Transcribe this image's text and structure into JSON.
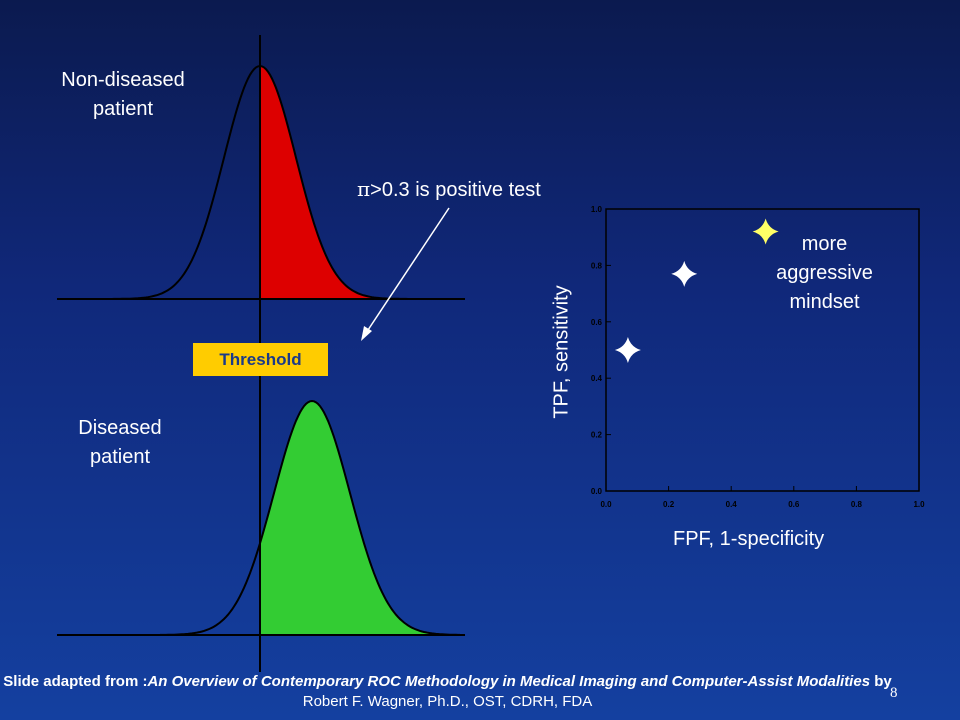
{
  "labels": {
    "non_diseased": [
      "Non-diseased",
      "patient"
    ],
    "diseased": [
      "Diseased",
      "patient"
    ],
    "threshold": "Threshold",
    "positive_test_symbol": "π",
    "positive_test_text": ">0.3 is positive test",
    "aggressive": [
      "more",
      "aggressive",
      "mindset"
    ]
  },
  "chart_data": {
    "type": "scatter",
    "xlabel": "FPF, 1-specificity",
    "ylabel": "TPF, sensitivity",
    "xlim": [
      0,
      1
    ],
    "ylim": [
      0,
      1
    ],
    "x_ticks": [
      "0.0",
      "0.2",
      "0.4",
      "0.6",
      "0.8",
      "1.0"
    ],
    "y_ticks": [
      "0.0",
      "0.2",
      "0.4",
      "0.6",
      "0.8",
      "1.0"
    ],
    "points": [
      {
        "x": 0.07,
        "y": 0.5,
        "color": "#ffffff"
      },
      {
        "x": 0.25,
        "y": 0.77,
        "color": "#ffffff"
      },
      {
        "x": 0.51,
        "y": 0.92,
        "color": "#ffff66"
      }
    ]
  },
  "colors": {
    "non_diseased_fill": "#dd0000",
    "diseased_fill": "#33cc33",
    "threshold_bg": "#ffcc00"
  },
  "footer": {
    "lead": "Slide adapted from :",
    "title": "An Overview of Contemporary ROC Methodology in Medical Imaging and Computer-Assist Modalities",
    "by": " by ",
    "author": "Robert F. Wagner, Ph.D., OST, CDRH, FDA",
    "page": "8"
  }
}
